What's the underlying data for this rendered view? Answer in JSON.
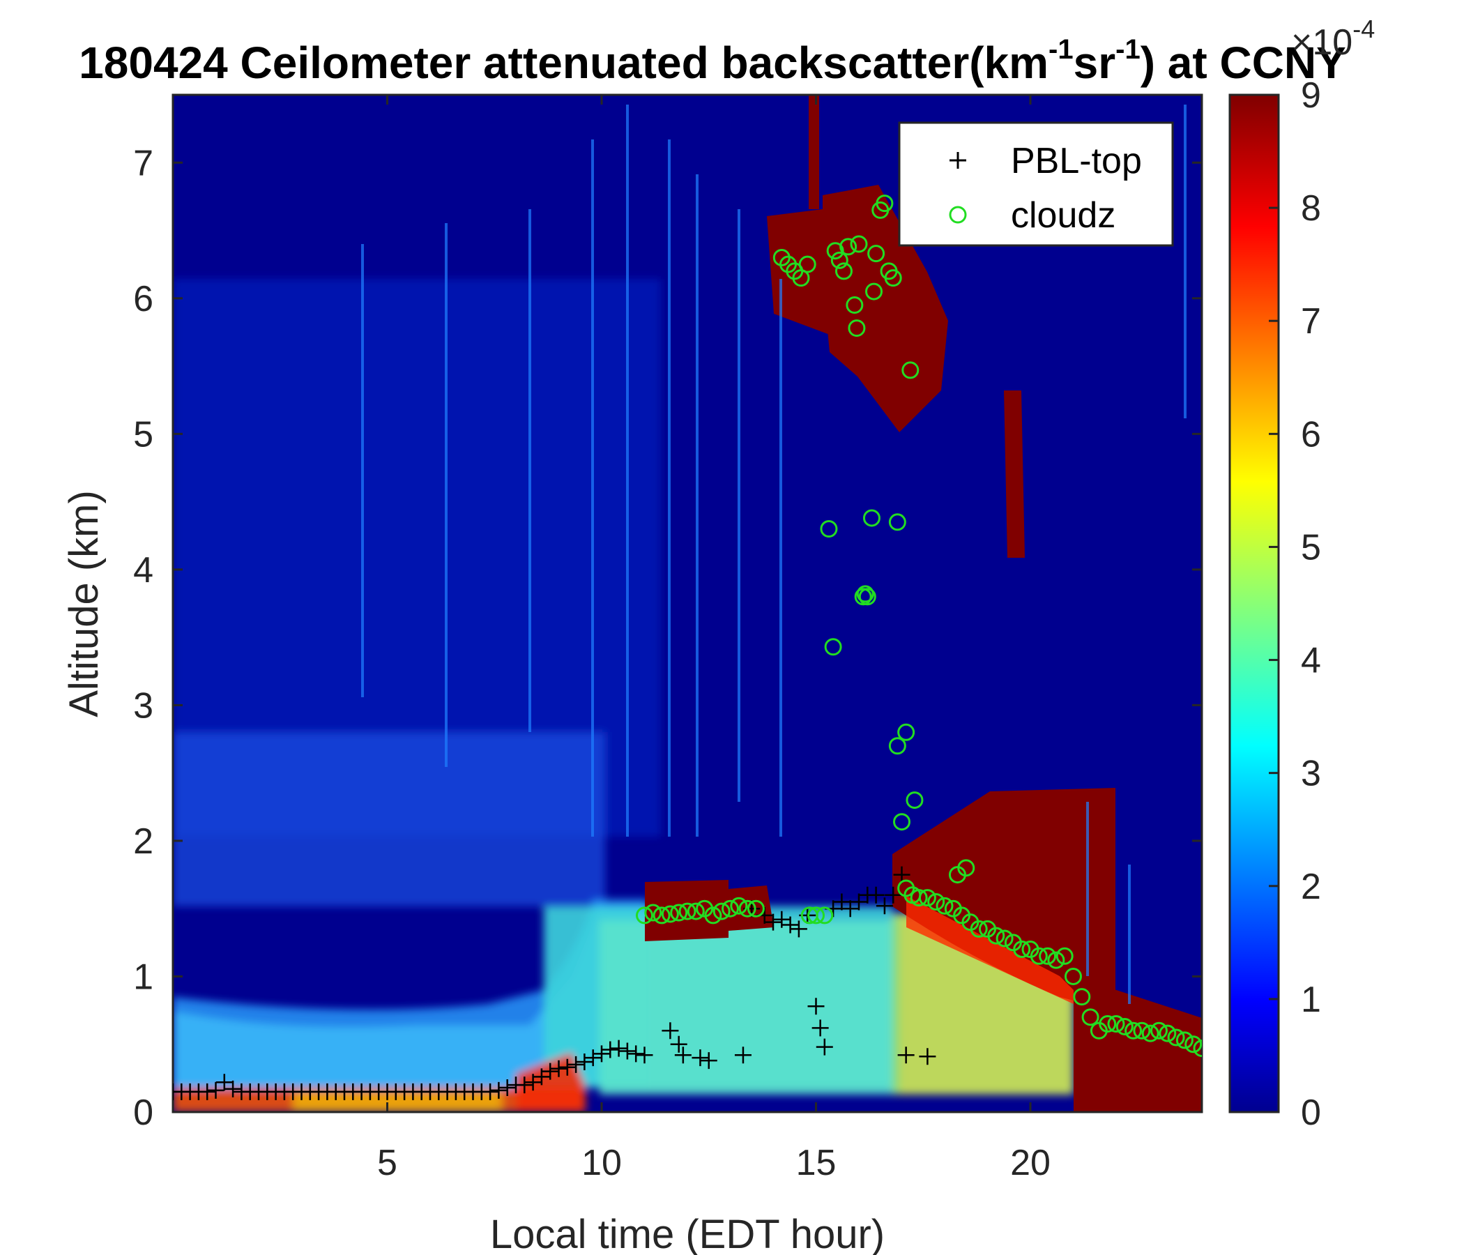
{
  "chart_data": {
    "type": "heatmap",
    "title_parts": [
      "180424 Ceilometer attenuated backscatter(km",
      "-1",
      "sr",
      "-1",
      ") at CCNY"
    ],
    "xlabel": "Local time (EDT hour)",
    "ylabel": "Altitude (km)",
    "xlim": [
      0,
      24
    ],
    "ylim": [
      0,
      7.5
    ],
    "xticks": [
      "5",
      "10",
      "15",
      "20"
    ],
    "xtick_values": [
      5,
      10,
      15,
      20
    ],
    "yticks": [
      "0",
      "1",
      "2",
      "3",
      "4",
      "5",
      "6",
      "7"
    ],
    "ytick_values": [
      0,
      1,
      2,
      3,
      4,
      5,
      6,
      7
    ],
    "colorbar": {
      "colormap": "jet",
      "clim": [
        0,
        9
      ],
      "ticks": [
        "0",
        "1",
        "2",
        "3",
        "4",
        "5",
        "6",
        "7",
        "8",
        "9"
      ],
      "tick_values": [
        0,
        1,
        2,
        3,
        4,
        5,
        6,
        7,
        8,
        9
      ],
      "exponent_label": "×10",
      "exponent_power": "-4"
    },
    "legend": {
      "location": "top-right",
      "entries": [
        {
          "label": "PBL-top",
          "marker": "+",
          "color": "#000000"
        },
        {
          "label": "cloudz",
          "marker": "o",
          "color": "#22dd22"
        }
      ]
    },
    "series": [
      {
        "name": "PBL-top",
        "marker": "+",
        "color": "#000000",
        "x": [
          0.0,
          0.2,
          0.4,
          0.6,
          0.8,
          1.0,
          1.2,
          1.4,
          1.6,
          1.8,
          2.0,
          2.2,
          2.4,
          2.6,
          2.8,
          3.0,
          3.2,
          3.4,
          3.6,
          3.8,
          4.0,
          4.2,
          4.4,
          4.6,
          4.8,
          5.0,
          5.2,
          5.4,
          5.6,
          5.8,
          6.0,
          6.2,
          6.4,
          6.6,
          6.8,
          7.0,
          7.2,
          7.4,
          7.6,
          7.8,
          8.0,
          8.2,
          8.4,
          8.6,
          8.8,
          9.0,
          9.2,
          9.4,
          9.6,
          9.8,
          10.0,
          10.2,
          10.4,
          10.6,
          10.8,
          11.0,
          11.6,
          11.8,
          11.9,
          12.3,
          12.5,
          13.3,
          15.0,
          15.1,
          15.2,
          17.1,
          17.6,
          13.5,
          13.8,
          14.0,
          14.2,
          14.4,
          14.6,
          14.8,
          15.4,
          15.6,
          15.8,
          16.0,
          16.2,
          16.4,
          16.6,
          16.8,
          17.0
        ],
        "y": [
          0.15,
          0.15,
          0.15,
          0.15,
          0.15,
          0.16,
          0.22,
          0.17,
          0.15,
          0.15,
          0.15,
          0.15,
          0.15,
          0.15,
          0.15,
          0.15,
          0.15,
          0.15,
          0.15,
          0.15,
          0.15,
          0.15,
          0.15,
          0.15,
          0.15,
          0.15,
          0.15,
          0.15,
          0.15,
          0.15,
          0.15,
          0.15,
          0.15,
          0.15,
          0.15,
          0.15,
          0.15,
          0.15,
          0.16,
          0.18,
          0.2,
          0.2,
          0.22,
          0.26,
          0.3,
          0.32,
          0.33,
          0.35,
          0.37,
          0.4,
          0.43,
          0.46,
          0.47,
          0.45,
          0.43,
          0.42,
          0.6,
          0.5,
          0.42,
          0.4,
          0.38,
          0.42,
          0.78,
          0.62,
          0.48,
          0.42,
          0.41,
          1.5,
          1.45,
          1.4,
          1.42,
          1.38,
          1.35,
          1.45,
          1.5,
          1.55,
          1.5,
          1.55,
          1.6,
          1.6,
          1.52,
          1.6,
          1.75
        ]
      },
      {
        "name": "cloudz",
        "marker": "o",
        "color": "#22dd22",
        "x": [
          11.0,
          11.2,
          11.4,
          11.6,
          11.8,
          12.0,
          12.2,
          12.4,
          12.6,
          12.8,
          13.0,
          13.2,
          13.4,
          13.6,
          14.2,
          14.35,
          14.5,
          14.65,
          14.8,
          14.85,
          15.0,
          15.2,
          15.45,
          15.55,
          15.65,
          15.75,
          15.9,
          15.95,
          16.0,
          16.1,
          16.15,
          16.2,
          16.35,
          16.4,
          16.5,
          16.6,
          16.7,
          16.8,
          16.9,
          15.3,
          15.4,
          16.3,
          17.2,
          17.25,
          17.4,
          17.6,
          17.8,
          18.0,
          18.2,
          18.4,
          18.6,
          18.8,
          19.0,
          19.2,
          19.4,
          19.6,
          19.8,
          20.0,
          20.2,
          20.4,
          20.6,
          20.8,
          21.0,
          21.2,
          21.4,
          21.6,
          21.8,
          22.0,
          22.2,
          22.4,
          22.6,
          22.8,
          23.0,
          23.2,
          23.4,
          23.6,
          23.8,
          24.0,
          17.1,
          16.9,
          17.0,
          17.1,
          17.3,
          18.3,
          18.5
        ],
        "y": [
          1.45,
          1.47,
          1.45,
          1.46,
          1.47,
          1.48,
          1.48,
          1.5,
          1.45,
          1.48,
          1.5,
          1.52,
          1.5,
          1.5,
          6.3,
          6.25,
          6.2,
          6.15,
          6.25,
          1.45,
          1.45,
          1.45,
          6.35,
          6.28,
          6.2,
          6.38,
          5.95,
          5.78,
          6.4,
          3.8,
          3.82,
          3.8,
          6.05,
          6.33,
          6.65,
          6.7,
          6.2,
          6.15,
          4.35,
          4.3,
          3.43,
          4.38,
          5.47,
          1.6,
          1.58,
          1.58,
          1.55,
          1.52,
          1.5,
          1.45,
          1.4,
          1.35,
          1.35,
          1.3,
          1.28,
          1.25,
          1.2,
          1.2,
          1.15,
          1.15,
          1.12,
          1.15,
          1.0,
          0.85,
          0.7,
          0.6,
          0.65,
          0.65,
          0.63,
          0.6,
          0.6,
          0.58,
          0.6,
          0.58,
          0.55,
          0.53,
          0.5,
          0.47,
          2.8,
          2.7,
          2.14,
          1.65,
          2.3,
          1.75,
          1.8
        ]
      }
    ]
  }
}
